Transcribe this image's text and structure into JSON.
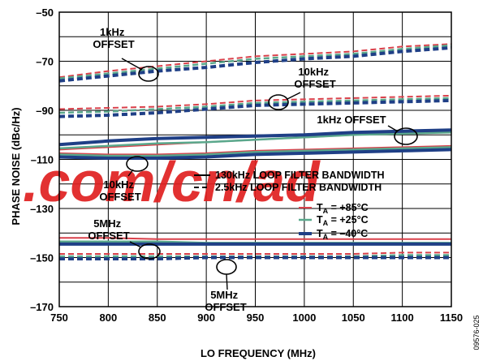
{
  "chart_data": {
    "type": "line",
    "xlabel": "LO FREQUENCY (MHz)",
    "ylabel": "PHASE NOISE (dBc/Hz)",
    "xlim": [
      750,
      1150
    ],
    "ylim": [
      -170,
      -50
    ],
    "xticks": [
      "750",
      "800",
      "850",
      "900",
      "950",
      "1000",
      "1050",
      "1100",
      "1150"
    ],
    "yticks": [
      "–50",
      "–70",
      "–90",
      "–110",
      "–130",
      "–150",
      "–170"
    ],
    "grid": true,
    "watermark": ".com/cn/ad",
    "figure_id": "09576-025",
    "legend_style": {
      "solid": "130kHz LOOP FILTER BANDWIDTH",
      "dashed": "2.5kHz LOOP FILTER BANDWIDTH"
    },
    "legend_temp": [
      {
        "sub": "A",
        "value": " = +85°C",
        "color": "#d9404a"
      },
      {
        "sub": "A",
        "value": " = +25°C",
        "color": "#5aa88c"
      },
      {
        "sub": "A",
        "value": " = –40°C",
        "color": "#1f3f86"
      }
    ],
    "annotations": [
      {
        "lines": [
          "1kHz",
          "OFFSET"
        ]
      },
      {
        "lines": [
          "10kHz",
          "OFFSET"
        ]
      },
      {
        "lines": [
          "1kHz OFFSET"
        ]
      },
      {
        "lines": [
          "10kHz",
          "OFFSET"
        ]
      },
      {
        "lines": [
          "5MHz",
          "OFFSET"
        ]
      },
      {
        "lines": [
          "5MHz",
          "OFFSET"
        ]
      }
    ],
    "x": [
      750,
      800,
      850,
      900,
      950,
      1000,
      1050,
      1100,
      1150
    ],
    "series": [
      {
        "bw": "2.5kHz",
        "offset": "1kHz",
        "temp": "+85°C",
        "color": "#d9404a",
        "dash": true,
        "width": 2,
        "values": [
          -76.5,
          -74,
          -72,
          -70,
          -68,
          -67,
          -66,
          -64,
          -63
        ]
      },
      {
        "bw": "2.5kHz",
        "offset": "1kHz",
        "temp": "+25°C",
        "color": "#5aa88c",
        "dash": true,
        "width": 2.5,
        "values": [
          -77,
          -75,
          -73,
          -71,
          -69,
          -68,
          -67,
          -65,
          -63.5
        ]
      },
      {
        "bw": "2.5kHz",
        "offset": "1kHz",
        "temp": "–40°C",
        "color": "#1f3f86",
        "dash": true,
        "width": 4,
        "values": [
          -78,
          -76,
          -74,
          -72.5,
          -70.5,
          -69,
          -68,
          -66,
          -64.5
        ]
      },
      {
        "bw": "2.5kHz",
        "offset": "10kHz",
        "temp": "+85°C",
        "color": "#d9404a",
        "dash": true,
        "width": 2,
        "values": [
          -89.5,
          -89,
          -88.5,
          -87.5,
          -86,
          -85.5,
          -85,
          -84.5,
          -84
        ]
      },
      {
        "bw": "2.5kHz",
        "offset": "10kHz",
        "temp": "+25°C",
        "color": "#5aa88c",
        "dash": true,
        "width": 2.5,
        "values": [
          -91,
          -90.5,
          -89.5,
          -88.5,
          -87,
          -86.5,
          -86,
          -85.5,
          -85
        ]
      },
      {
        "bw": "2.5kHz",
        "offset": "10kHz",
        "temp": "–40°C",
        "color": "#1f3f86",
        "dash": true,
        "width": 4,
        "values": [
          -92.5,
          -92,
          -91,
          -89.5,
          -88,
          -87.5,
          -87,
          -86.5,
          -86
        ]
      },
      {
        "bw": "130kHz",
        "offset": "1kHz",
        "temp": "+85°C",
        "color": "#d9404a",
        "dash": false,
        "width": 2,
        "values": [
          -106,
          -105,
          -104,
          -103,
          -102,
          -101,
          -100,
          -99,
          -98.5
        ]
      },
      {
        "bw": "130kHz",
        "offset": "1kHz",
        "temp": "+25°C",
        "color": "#5aa88c",
        "dash": false,
        "width": 2.5,
        "values": [
          -105.5,
          -104.5,
          -103.5,
          -103,
          -102,
          -101,
          -100,
          -99.5,
          -99
        ]
      },
      {
        "bw": "130kHz",
        "offset": "1kHz",
        "temp": "–40°C",
        "color": "#1f3f86",
        "dash": false,
        "width": 4,
        "values": [
          -104,
          -102.5,
          -101.5,
          -101,
          -100.5,
          -100,
          -99,
          -98.5,
          -98
        ]
      },
      {
        "bw": "130kHz",
        "offset": "10kHz",
        "temp": "+85°C",
        "color": "#d9404a",
        "dash": false,
        "width": 2,
        "values": [
          -107.5,
          -108,
          -108,
          -107.5,
          -106.5,
          -106,
          -105.5,
          -105,
          -104.5
        ]
      },
      {
        "bw": "130kHz",
        "offset": "10kHz",
        "temp": "+25°C",
        "color": "#5aa88c",
        "dash": false,
        "width": 2.5,
        "values": [
          -108,
          -108.5,
          -108.5,
          -108,
          -107,
          -106.5,
          -106,
          -105.5,
          -105
        ]
      },
      {
        "bw": "130kHz",
        "offset": "10kHz",
        "temp": "–40°C",
        "color": "#1f3f86",
        "dash": false,
        "width": 4,
        "values": [
          -109,
          -109.5,
          -109.5,
          -109,
          -108,
          -107.5,
          -107,
          -106.5,
          -106
        ]
      },
      {
        "bw": "130kHz",
        "offset": "5MHz",
        "temp": "+85°C",
        "color": "#d9404a",
        "dash": false,
        "width": 2,
        "values": [
          -142,
          -142,
          -142.5,
          -142.5,
          -142.5,
          -142.5,
          -142.5,
          -142.5,
          -142.5
        ]
      },
      {
        "bw": "130kHz",
        "offset": "5MHz",
        "temp": "+25°C",
        "color": "#5aa88c",
        "dash": false,
        "width": 2.5,
        "values": [
          -143.5,
          -143.5,
          -143.5,
          -144,
          -144,
          -144,
          -144,
          -144,
          -144
        ]
      },
      {
        "bw": "130kHz",
        "offset": "5MHz",
        "temp": "–40°C",
        "color": "#1f3f86",
        "dash": false,
        "width": 4,
        "values": [
          -144.5,
          -144.5,
          -144.5,
          -144.5,
          -144.5,
          -144.5,
          -144.5,
          -144.5,
          -144.5
        ]
      },
      {
        "bw": "2.5kHz",
        "offset": "5MHz",
        "temp": "+85°C",
        "color": "#d9404a",
        "dash": true,
        "width": 2,
        "values": [
          -148.5,
          -148.5,
          -148.5,
          -148.5,
          -148.5,
          -148.5,
          -148.5,
          -148,
          -148
        ]
      },
      {
        "bw": "2.5kHz",
        "offset": "5MHz",
        "temp": "+25°C",
        "color": "#5aa88c",
        "dash": true,
        "width": 2.5,
        "values": [
          -149.5,
          -149.5,
          -149.5,
          -149.5,
          -149.5,
          -149.5,
          -149.5,
          -149,
          -149
        ]
      },
      {
        "bw": "2.5kHz",
        "offset": "5MHz",
        "temp": "–40°C",
        "color": "#1f3f86",
        "dash": true,
        "width": 4,
        "values": [
          -150.5,
          -150.5,
          -150.5,
          -150,
          -150,
          -150,
          -150,
          -150,
          -150
        ]
      }
    ]
  }
}
